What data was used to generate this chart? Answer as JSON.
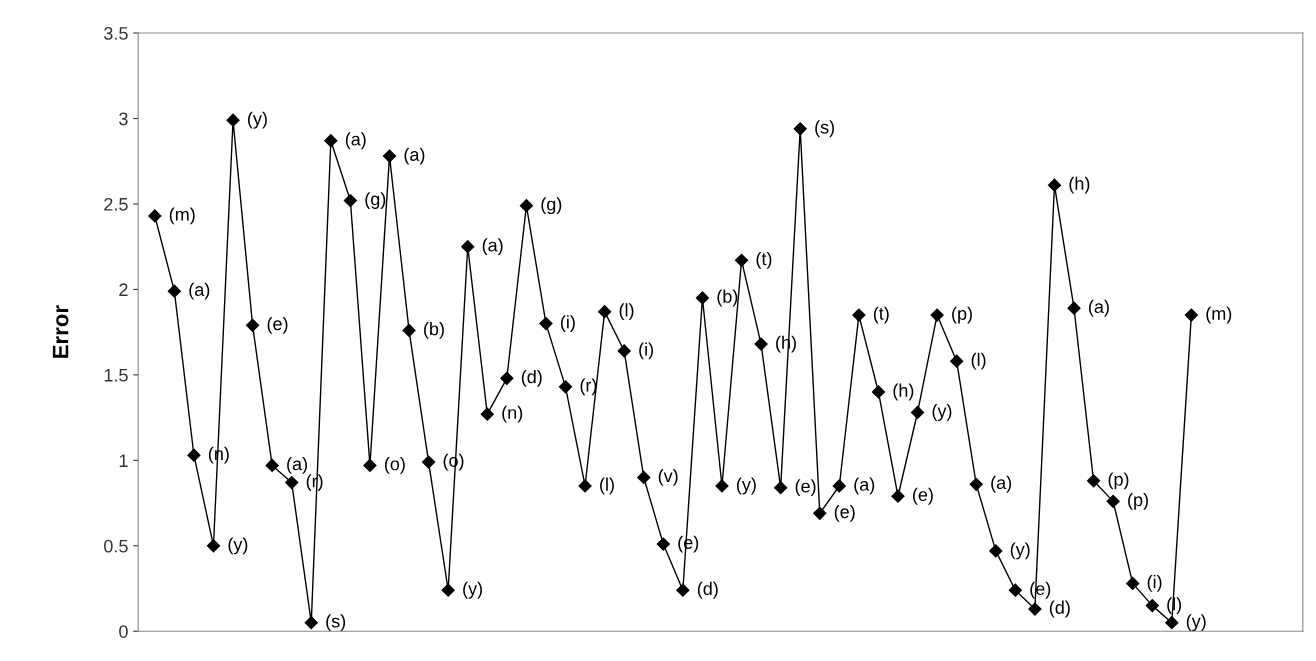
{
  "chart_data": {
    "type": "line",
    "ylabel": "Error",
    "categories": [
      null,
      null,
      null,
      null,
      null,
      null,
      null,
      null,
      null,
      null,
      null,
      null,
      null,
      null,
      null,
      null,
      null,
      null,
      null,
      null,
      null,
      null,
      null,
      null,
      null,
      null,
      null,
      null,
      null,
      null,
      null,
      null,
      null,
      null,
      null,
      null,
      null,
      null,
      null,
      null,
      null,
      null,
      null,
      null,
      null,
      null,
      null,
      null,
      null,
      null,
      null,
      null,
      null,
      null
    ],
    "series": [
      {
        "color": "#000000",
        "values": [
          2.43,
          1.99,
          1.03,
          0.5,
          2.99,
          1.79,
          0.97,
          0.87,
          0.05,
          2.87,
          2.52,
          0.97,
          2.78,
          1.76,
          0.99,
          0.24,
          2.25,
          1.27,
          1.48,
          2.49,
          1.8,
          1.43,
          0.85,
          1.87,
          1.64,
          0.9,
          0.51,
          0.24,
          1.95,
          0.85,
          2.17,
          1.68,
          0.84,
          2.94,
          0.69,
          0.85,
          1.85,
          1.4,
          0.79,
          1.28,
          1.85,
          1.58,
          0.86,
          0.47,
          0.24,
          0.13,
          2.61,
          1.89,
          0.88,
          0.76,
          0.28,
          0.15,
          0.05,
          1.85
        ],
        "value_labels": [
          "(m)",
          "(a)",
          "(n)",
          "(y)",
          "(y)",
          "(e)",
          "(a)",
          "(r)",
          "(s)",
          "(a)",
          "(g)",
          "(o)",
          "(a)",
          "(b)",
          "(o)",
          "(y)",
          "(a)",
          "(n)",
          "(d)",
          "(g)",
          "(i)",
          "(r)",
          "(l)",
          "(l)",
          "(i)",
          "(v)",
          "(e)",
          "(d)",
          "(b)",
          "(y)",
          "(t)",
          "(h)",
          "(e)",
          "(s)",
          "(e)",
          "(a)",
          "(t)",
          "(h)",
          "(e)",
          "(y)",
          "(p)",
          "(l)",
          "(a)",
          "(y)",
          "(e)",
          "(d)",
          "(h)",
          "(a)",
          "(p)",
          "(p)",
          "(i)",
          "(l)",
          "(y)",
          "(m)"
        ]
      }
    ],
    "ylim": [
      0,
      3.5
    ],
    "yticks": [
      0,
      0.5,
      1,
      1.5,
      2,
      2.5,
      3,
      3.5
    ],
    "marker": "diamond",
    "line_style": "solid",
    "grid": false,
    "tick_labels": "y"
  }
}
